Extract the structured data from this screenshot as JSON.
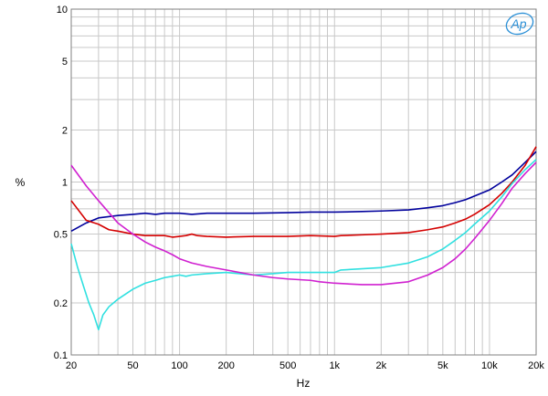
{
  "chart_data": {
    "type": "line",
    "xscale": "log",
    "yscale": "log",
    "xlim": [
      20,
      20000
    ],
    "ylim": [
      0.1,
      10
    ],
    "grid": true,
    "legend": "none",
    "xlabel": "Hz",
    "ylabel": "%",
    "x_ticks": [
      {
        "value": 20,
        "label": "20"
      },
      {
        "value": 50,
        "label": "50"
      },
      {
        "value": 100,
        "label": "100"
      },
      {
        "value": 200,
        "label": "200"
      },
      {
        "value": 500,
        "label": "500"
      },
      {
        "value": 1000,
        "label": "1k"
      },
      {
        "value": 2000,
        "label": "2k"
      },
      {
        "value": 5000,
        "label": "5k"
      },
      {
        "value": 10000,
        "label": "10k"
      },
      {
        "value": 20000,
        "label": "20k"
      }
    ],
    "y_ticks": [
      {
        "value": 0.1,
        "label": "0.1"
      },
      {
        "value": 0.2,
        "label": "0.2"
      },
      {
        "value": 0.5,
        "label": "0.5"
      },
      {
        "value": 1,
        "label": "1"
      },
      {
        "value": 2,
        "label": "2"
      },
      {
        "value": 5,
        "label": "5"
      },
      {
        "value": 10,
        "label": "10"
      }
    ],
    "series": [
      {
        "color": "#00009c",
        "points": [
          [
            20,
            0.52
          ],
          [
            25,
            0.58
          ],
          [
            30,
            0.62
          ],
          [
            40,
            0.64
          ],
          [
            50,
            0.65
          ],
          [
            60,
            0.66
          ],
          [
            70,
            0.65
          ],
          [
            80,
            0.66
          ],
          [
            100,
            0.66
          ],
          [
            120,
            0.65
          ],
          [
            150,
            0.66
          ],
          [
            200,
            0.66
          ],
          [
            300,
            0.66
          ],
          [
            500,
            0.665
          ],
          [
            700,
            0.67
          ],
          [
            1000,
            0.67
          ],
          [
            1500,
            0.675
          ],
          [
            2000,
            0.68
          ],
          [
            3000,
            0.69
          ],
          [
            4000,
            0.71
          ],
          [
            5000,
            0.73
          ],
          [
            6000,
            0.76
          ],
          [
            7000,
            0.79
          ],
          [
            8000,
            0.83
          ],
          [
            10000,
            0.9
          ],
          [
            12000,
            1.0
          ],
          [
            14000,
            1.1
          ],
          [
            17000,
            1.3
          ],
          [
            20000,
            1.5
          ]
        ]
      },
      {
        "color": "#d40000",
        "points": [
          [
            20,
            0.78
          ],
          [
            25,
            0.6
          ],
          [
            30,
            0.57
          ],
          [
            35,
            0.53
          ],
          [
            40,
            0.52
          ],
          [
            50,
            0.5
          ],
          [
            60,
            0.49
          ],
          [
            70,
            0.49
          ],
          [
            80,
            0.49
          ],
          [
            90,
            0.48
          ],
          [
            100,
            0.485
          ],
          [
            110,
            0.49
          ],
          [
            120,
            0.5
          ],
          [
            130,
            0.49
          ],
          [
            150,
            0.485
          ],
          [
            200,
            0.48
          ],
          [
            300,
            0.485
          ],
          [
            500,
            0.485
          ],
          [
            700,
            0.49
          ],
          [
            1000,
            0.485
          ],
          [
            1100,
            0.49
          ],
          [
            1500,
            0.495
          ],
          [
            2000,
            0.5
          ],
          [
            3000,
            0.51
          ],
          [
            4000,
            0.53
          ],
          [
            5000,
            0.55
          ],
          [
            6000,
            0.58
          ],
          [
            7000,
            0.61
          ],
          [
            8000,
            0.65
          ],
          [
            10000,
            0.74
          ],
          [
            12000,
            0.86
          ],
          [
            14000,
            1.0
          ],
          [
            17000,
            1.25
          ],
          [
            20000,
            1.6
          ]
        ]
      },
      {
        "color": "#30e0e0",
        "points": [
          [
            20,
            0.44
          ],
          [
            22,
            0.32
          ],
          [
            24,
            0.25
          ],
          [
            26,
            0.2
          ],
          [
            28,
            0.17
          ],
          [
            30,
            0.14
          ],
          [
            32,
            0.17
          ],
          [
            35,
            0.19
          ],
          [
            40,
            0.21
          ],
          [
            50,
            0.24
          ],
          [
            60,
            0.26
          ],
          [
            70,
            0.27
          ],
          [
            80,
            0.28
          ],
          [
            90,
            0.285
          ],
          [
            100,
            0.29
          ],
          [
            110,
            0.285
          ],
          [
            120,
            0.29
          ],
          [
            150,
            0.295
          ],
          [
            200,
            0.3
          ],
          [
            300,
            0.29
          ],
          [
            400,
            0.295
          ],
          [
            500,
            0.3
          ],
          [
            700,
            0.3
          ],
          [
            1000,
            0.3
          ],
          [
            1100,
            0.31
          ],
          [
            1500,
            0.315
          ],
          [
            2000,
            0.32
          ],
          [
            3000,
            0.34
          ],
          [
            4000,
            0.37
          ],
          [
            5000,
            0.41
          ],
          [
            6000,
            0.46
          ],
          [
            7000,
            0.51
          ],
          [
            8000,
            0.57
          ],
          [
            10000,
            0.68
          ],
          [
            12000,
            0.82
          ],
          [
            14000,
            0.98
          ],
          [
            17000,
            1.18
          ],
          [
            20000,
            1.35
          ]
        ]
      },
      {
        "color": "#d020d0",
        "points": [
          [
            20,
            1.25
          ],
          [
            25,
            0.95
          ],
          [
            30,
            0.78
          ],
          [
            40,
            0.58
          ],
          [
            50,
            0.5
          ],
          [
            60,
            0.45
          ],
          [
            70,
            0.42
          ],
          [
            80,
            0.4
          ],
          [
            90,
            0.38
          ],
          [
            100,
            0.36
          ],
          [
            120,
            0.34
          ],
          [
            150,
            0.325
          ],
          [
            200,
            0.31
          ],
          [
            300,
            0.29
          ],
          [
            400,
            0.28
          ],
          [
            500,
            0.275
          ],
          [
            700,
            0.27
          ],
          [
            800,
            0.265
          ],
          [
            1000,
            0.26
          ],
          [
            1500,
            0.255
          ],
          [
            2000,
            0.255
          ],
          [
            3000,
            0.265
          ],
          [
            4000,
            0.29
          ],
          [
            5000,
            0.32
          ],
          [
            6000,
            0.36
          ],
          [
            7000,
            0.41
          ],
          [
            8000,
            0.47
          ],
          [
            10000,
            0.6
          ],
          [
            12000,
            0.75
          ],
          [
            14000,
            0.92
          ],
          [
            17000,
            1.12
          ],
          [
            20000,
            1.3
          ]
        ]
      }
    ]
  },
  "logo": {
    "text": "Ap",
    "color": "#2a8fd6"
  }
}
